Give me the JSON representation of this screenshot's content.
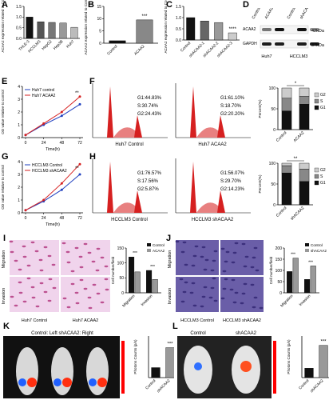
{
  "figure": {
    "panel_letters": [
      "A",
      "B",
      "C",
      "D",
      "E",
      "F",
      "G",
      "H",
      "I",
      "J",
      "K",
      "L"
    ]
  },
  "chart_data": [
    {
      "panel": "A",
      "type": "bar",
      "ylabel": "ACAA2 expression related to Control",
      "categories": [
        "THLE-3",
        "HCCLM3",
        "HepG2",
        "Hep3B",
        "Huh7"
      ],
      "values": [
        1.0,
        0.78,
        0.75,
        0.72,
        0.52
      ],
      "colors": [
        "#111111",
        "#555555",
        "#777777",
        "#999999",
        "#bbbbbb"
      ],
      "ylim": [
        0,
        1.5
      ],
      "yticks": [
        "0.0",
        "0.5",
        "1.0",
        "1.5"
      ]
    },
    {
      "panel": "B",
      "type": "bar",
      "ylabel": "ACAA2 expression related to Control",
      "categories": [
        "Control",
        "ACAA2"
      ],
      "values": [
        1,
        9.5
      ],
      "colors": [
        "#111111",
        "#888888"
      ],
      "ylim": [
        0,
        15
      ],
      "yticks": [
        "0",
        "5",
        "10",
        "15"
      ],
      "significance": "***"
    },
    {
      "panel": "C",
      "type": "bar",
      "ylabel": "ACAA2 expression related to Control",
      "categories": [
        "Control",
        "shACAA2-1",
        "shACAA2-2",
        "shACAA2-3"
      ],
      "values": [
        1.0,
        0.85,
        0.78,
        0.32
      ],
      "colors": [
        "#111111",
        "#666666",
        "#999999",
        "#cccccc"
      ],
      "ylim": [
        0,
        1.5
      ],
      "yticks": [
        "0.0",
        "0.5",
        "1.0",
        "1.5"
      ],
      "significance": "****"
    },
    {
      "panel": "E",
      "type": "line",
      "xlabel": "Time(h)",
      "ylabel": "OD value relative to control",
      "x": [
        0,
        24,
        48,
        72
      ],
      "xticks": [
        "0",
        "24",
        "48",
        "72"
      ],
      "yticks": [
        "0",
        "1",
        "2",
        "3",
        "4"
      ],
      "ylim": [
        0,
        4
      ],
      "series": [
        {
          "name": "Huh7 control",
          "color": "#1f3fbf",
          "values": [
            0.2,
            1.0,
            1.7,
            2.6
          ]
        },
        {
          "name": "Huh7 ACAA2",
          "color": "#d62020",
          "values": [
            0.2,
            1.1,
            2.0,
            3.2
          ]
        }
      ],
      "significance": "**"
    },
    {
      "panel": "G",
      "type": "line",
      "xlabel": "Time(h)",
      "ylabel": "OD value relative to control",
      "x": [
        0,
        24,
        48,
        72
      ],
      "xticks": [
        "0",
        "24",
        "48",
        "72"
      ],
      "yticks": [
        "0",
        "1",
        "2",
        "3",
        "4"
      ],
      "ylim": [
        0,
        4
      ],
      "series": [
        {
          "name": "HCCLM3 Control",
          "color": "#1f3fbf",
          "values": [
            0.2,
            0.9,
            1.8,
            3.0
          ]
        },
        {
          "name": "HCCLM3 shACAA2",
          "color": "#d62020",
          "values": [
            0.2,
            1.0,
            2.3,
            3.8
          ]
        }
      ],
      "significance": "**"
    },
    {
      "panel": "F-right",
      "type": "bar",
      "ylabel": "Percent(%)",
      "categories": [
        "Control",
        "ACAA2"
      ],
      "yticks": [
        "0",
        "50",
        "100"
      ],
      "ylim": [
        0,
        100
      ],
      "series": [
        {
          "name": "G1",
          "color": "#111111",
          "values": [
            44.83,
            61.1
          ]
        },
        {
          "name": "S",
          "color": "#888888",
          "values": [
            30.74,
            18.7
          ]
        },
        {
          "name": "G2",
          "color": "#cccccc",
          "values": [
            24.43,
            20.2
          ]
        }
      ],
      "significance": "*"
    },
    {
      "panel": "H-right",
      "type": "bar",
      "ylabel": "Percent(%)",
      "categories": [
        "Control",
        "shACAA2"
      ],
      "yticks": [
        "0",
        "50",
        "100"
      ],
      "ylim": [
        0,
        100
      ],
      "series": [
        {
          "name": "G1",
          "color": "#111111",
          "values": [
            76.57,
            56.07
          ]
        },
        {
          "name": "S",
          "color": "#888888",
          "values": [
            17.56,
            29.7
          ]
        },
        {
          "name": "G2",
          "color": "#cccccc",
          "values": [
            5.87,
            14.23
          ]
        }
      ],
      "significance": "**"
    },
    {
      "panel": "I-right",
      "type": "bar",
      "ylabel": "Cell number/field",
      "categories": [
        "Migration",
        "Invasion"
      ],
      "yticks": [
        "0",
        "50",
        "100",
        "150"
      ],
      "ylim": [
        0,
        150
      ],
      "series": [
        {
          "name": "Control",
          "color": "#111111",
          "values": [
            120,
            75
          ]
        },
        {
          "name": "ACAA2",
          "color": "#999999",
          "values": [
            70,
            45
          ]
        }
      ],
      "significance": [
        "***",
        "***"
      ]
    },
    {
      "panel": "J-right",
      "type": "bar",
      "ylabel": "Cell number/field",
      "categories": [
        "Migration",
        "Invasion"
      ],
      "yticks": [
        "0",
        "50",
        "100",
        "150",
        "200"
      ],
      "ylim": [
        0,
        200
      ],
      "series": [
        {
          "name": "Control",
          "color": "#111111",
          "values": [
            95,
            60
          ]
        },
        {
          "name": "shACAA2",
          "color": "#999999",
          "values": [
            155,
            120
          ]
        }
      ],
      "significance": [
        "***",
        "***"
      ]
    },
    {
      "panel": "K-right",
      "type": "bar",
      "ylabel": "Photons Counts (p/s)",
      "categories": [
        "Control",
        "shACAA2"
      ],
      "values": [
        1.2,
        3.6
      ],
      "colors": [
        "#111111",
        "#999999"
      ],
      "ylim": [
        0,
        5
      ],
      "significance": "***"
    },
    {
      "panel": "L-right",
      "type": "bar",
      "ylabel": "Photons Counts (p/s)",
      "categories": [
        "Control",
        "shACAA2"
      ],
      "values": [
        1.8,
        6.2
      ],
      "colors": [
        "#111111",
        "#999999"
      ],
      "ylim": [
        0,
        8
      ],
      "significance": "***"
    }
  ],
  "western_blot": {
    "lanes_huh7": [
      "Control",
      "ACAA2"
    ],
    "lanes_hcclm3": [
      "Control",
      "shACAA2"
    ],
    "rows": [
      "ACAA2",
      "GAPDH"
    ],
    "sizes": [
      "42kDa",
      "37kDa"
    ],
    "cells": [
      "Huh7",
      "HCCLM3"
    ],
    "acaa2_intensity": [
      0.55,
      1.0,
      1.0,
      0.45
    ]
  },
  "flow": {
    "F": [
      {
        "caption": "Huh7 Control",
        "g1": "G1:44.83%",
        "s": "S:30.74%",
        "g2": "G2:24.43%"
      },
      {
        "caption": "Huh7 ACAA2",
        "g1": "G1:61.10%",
        "s": "S:18.70%",
        "g2": "G2:20.20%"
      }
    ],
    "H": [
      {
        "caption": "HCCLM3 Control",
        "g1": "G1:76.57%",
        "s": "S:17.56%",
        "g2": "G2:5.87%"
      },
      {
        "caption": "HCCLM3 shACAA2",
        "g1": "G1:56.07%",
        "s": "S:29.70%",
        "g2": "G2:14.23%"
      }
    ]
  },
  "transwell": {
    "I": {
      "rows": [
        "Migration",
        "Invasion"
      ],
      "captions": [
        "Huh7 Control",
        "Huh7 ACAA2"
      ]
    },
    "J": {
      "rows": [
        "Migration",
        "Invasion"
      ],
      "captions": [
        "HCCLM3 Control",
        "HCCLM3 shACAA2"
      ]
    }
  },
  "imaging": {
    "K": {
      "header": "Control: Left     shACAA2: Right"
    },
    "L": {
      "headers": [
        "Control",
        "shACAA2"
      ]
    }
  }
}
